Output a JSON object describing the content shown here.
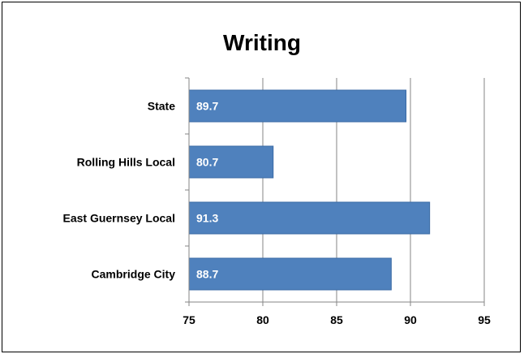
{
  "chart_data": {
    "type": "bar",
    "orientation": "horizontal",
    "title": "Writing",
    "categories": [
      "State",
      "Rolling Hills Local",
      "East Guernsey Local",
      "Cambridge City"
    ],
    "values": [
      89.7,
      80.7,
      91.3,
      88.7
    ],
    "data_labels": [
      "89.7",
      "80.7",
      "91.3",
      "88.7"
    ],
    "xlim": [
      75,
      95
    ],
    "xticks": [
      "75",
      "80",
      "85",
      "90",
      "95"
    ],
    "xlabel": "",
    "ylabel": "",
    "grid": "vertical major gridlines",
    "legend": "none",
    "bar_color": "#4F81BD",
    "bar_border_color": "#3A6AA5",
    "gridline_color": "#868686"
  }
}
